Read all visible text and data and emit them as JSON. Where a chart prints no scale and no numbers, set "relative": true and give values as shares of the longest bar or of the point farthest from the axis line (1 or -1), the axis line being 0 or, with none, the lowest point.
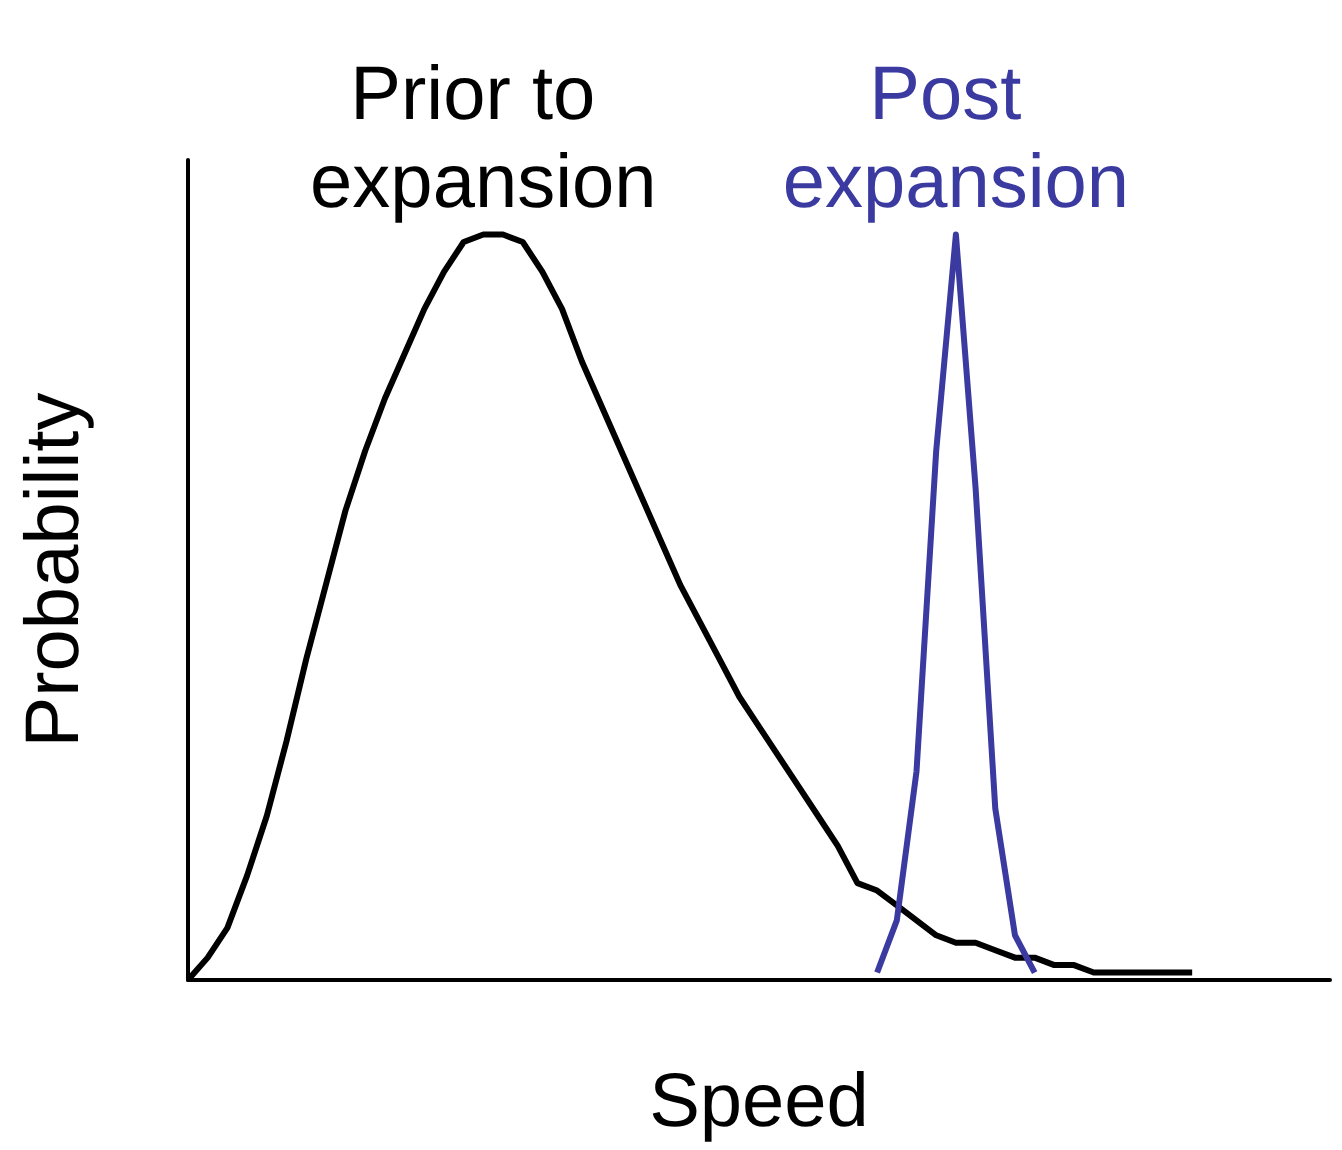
{
  "chart_data": {
    "type": "line",
    "relative": true,
    "xlabel": "Speed",
    "ylabel": "Probability",
    "marker": "none",
    "categories": [
      null,
      null,
      null,
      null,
      null,
      null,
      null,
      null,
      null,
      null,
      null,
      null,
      null,
      null,
      null,
      null,
      null,
      null,
      null,
      null,
      null,
      null,
      null,
      null,
      null,
      null,
      null,
      null,
      null,
      null,
      null,
      null,
      null,
      null,
      null,
      null,
      null,
      null,
      null,
      null,
      null,
      null,
      null,
      null,
      null,
      null,
      null,
      null,
      null,
      null,
      null,
      null,
      null,
      null,
      null,
      null,
      null,
      null,
      null
    ],
    "series": [
      {
        "name": "Prior to expansion",
        "color": "#000000",
        "values": [
          0,
          0.03,
          0.07,
          0.14,
          0.22,
          0.32,
          0.43,
          0.53,
          0.63,
          0.71,
          0.78,
          0.84,
          0.9,
          0.95,
          0.99,
          1,
          1,
          0.99,
          0.95,
          0.9,
          0.83,
          0.77,
          0.71,
          0.65,
          0.59,
          0.53,
          0.48,
          0.43,
          0.38,
          0.34,
          0.3,
          0.26,
          0.22,
          0.18,
          0.13,
          0.12,
          0.1,
          0.08,
          0.06,
          0.05,
          0.05,
          0.04,
          0.03,
          0.03,
          0.02,
          0.02,
          0.01,
          0.01,
          0.01,
          0.01,
          0.01,
          0.01,
          null,
          null,
          null,
          null,
          null,
          null,
          null
        ]
      },
      {
        "name": "Post expansion",
        "color": "#3a3aa0",
        "values": [
          null,
          null,
          null,
          null,
          null,
          null,
          null,
          null,
          null,
          null,
          null,
          null,
          null,
          null,
          null,
          null,
          null,
          null,
          null,
          null,
          null,
          null,
          null,
          null,
          null,
          null,
          null,
          null,
          null,
          null,
          null,
          null,
          null,
          null,
          null,
          0.01,
          0.08,
          0.28,
          0.71,
          1,
          0.66,
          0.23,
          0.06,
          0.01,
          null,
          null,
          null,
          null,
          null,
          null,
          null,
          null,
          null,
          null,
          null,
          null,
          null,
          null,
          null
        ]
      }
    ]
  }
}
